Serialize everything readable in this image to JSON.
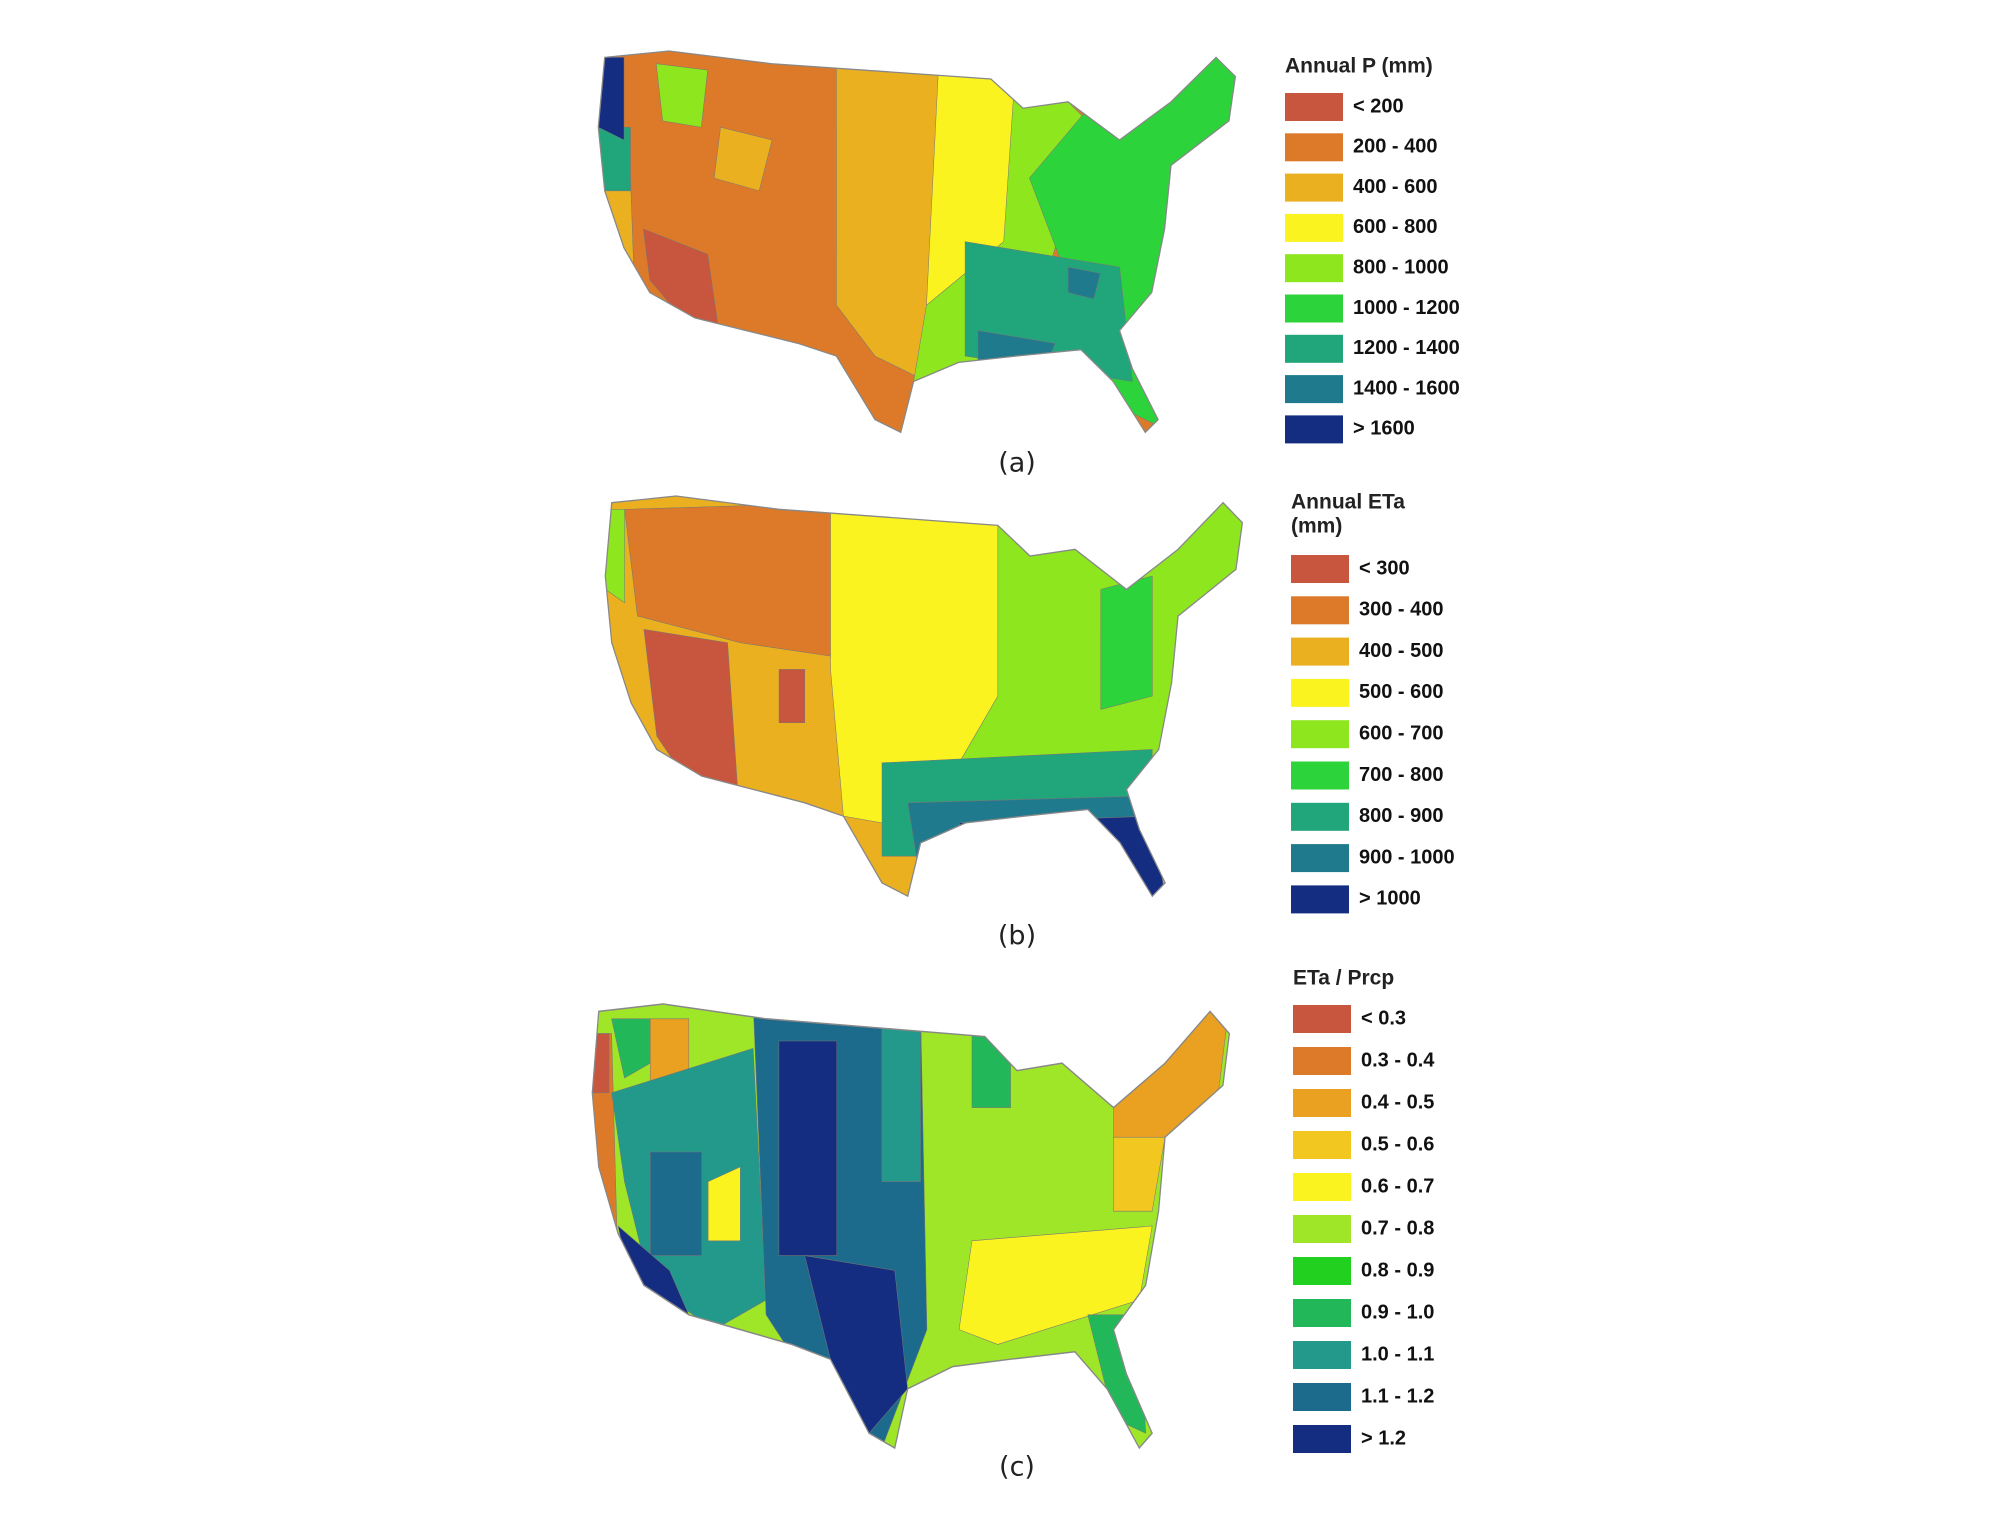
{
  "panels": [
    {
      "legend_title": [
        "Annual P (mm)"
      ],
      "caption": "(a)",
      "legend": [
        {
          "label": "< 200",
          "color": "#c8553d"
        },
        {
          "label": "200 - 400",
          "color": "#dc7a2a"
        },
        {
          "label": "400 - 600",
          "color": "#eab020"
        },
        {
          "label": "600 - 800",
          "color": "#fbf320"
        },
        {
          "label": "800 - 1000",
          "color": "#8ee61e"
        },
        {
          "label": "1000 - 1200",
          "color": "#2dd33a"
        },
        {
          "label": "1200 - 1400",
          "color": "#21a57a"
        },
        {
          "label": "1400 - 1600",
          "color": "#1e7a8c"
        },
        {
          "label": "> 1600",
          "color": "#142d80"
        }
      ]
    },
    {
      "legend_title": [
        "Annual ETa",
        "(mm)"
      ],
      "caption": "(b)",
      "legend": [
        {
          "label": "< 300",
          "color": "#c8553d"
        },
        {
          "label": "300 - 400",
          "color": "#dc7a2a"
        },
        {
          "label": "400 - 500",
          "color": "#eab020"
        },
        {
          "label": "500 - 600",
          "color": "#fbf320"
        },
        {
          "label": "600 - 700",
          "color": "#8ee61e"
        },
        {
          "label": "700 - 800",
          "color": "#2dd33a"
        },
        {
          "label": "800 - 900",
          "color": "#21a57a"
        },
        {
          "label": "900 - 1000",
          "color": "#1e7a8c"
        },
        {
          "label": "> 1000",
          "color": "#142d80"
        }
      ]
    },
    {
      "legend_title": [
        "ETa / Prcp"
      ],
      "caption": "(c)",
      "legend": [
        {
          "label": "< 0.3",
          "color": "#c8553d"
        },
        {
          "label": "0.3 - 0.4",
          "color": "#dc7a2a"
        },
        {
          "label": "0.4 - 0.5",
          "color": "#eaa020"
        },
        {
          "label": "0.5 - 0.6",
          "color": "#f2c820"
        },
        {
          "label": "0.6 - 0.7",
          "color": "#fbf320"
        },
        {
          "label": "0.7 - 0.8",
          "color": "#a0e628"
        },
        {
          "label": "0.8 - 0.9",
          "color": "#22d020"
        },
        {
          "label": "0.9 - 1.0",
          "color": "#22b85a"
        },
        {
          "label": "1.0 - 1.1",
          "color": "#22998a"
        },
        {
          "label": "1.1 - 1.2",
          "color": "#1c6a8c"
        },
        {
          "label": "> 1.2",
          "color": "#142d80"
        }
      ]
    }
  ]
}
